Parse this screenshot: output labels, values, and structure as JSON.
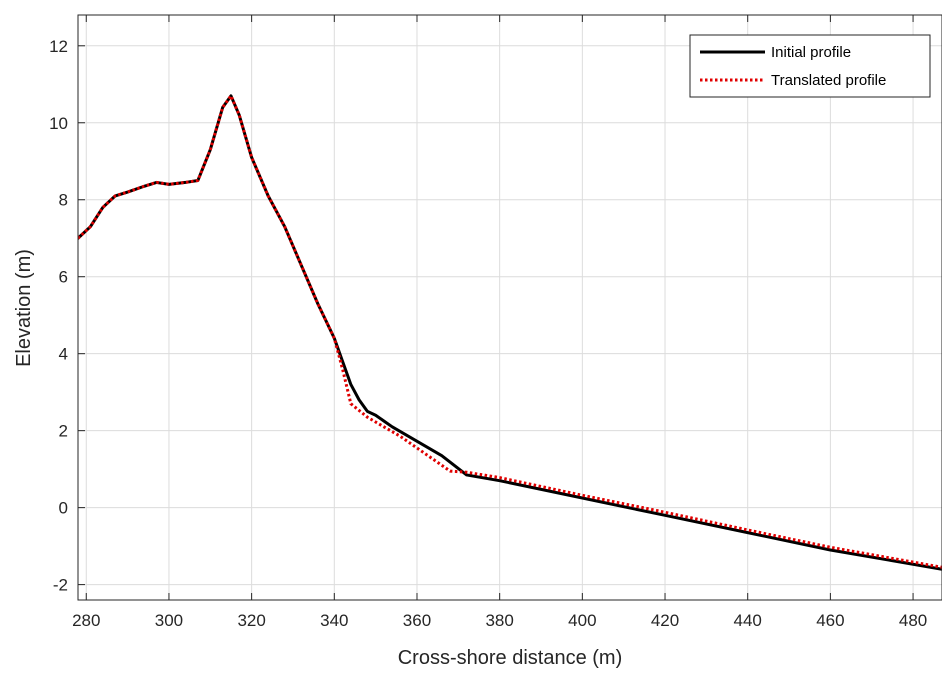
{
  "chart_data": {
    "type": "line",
    "title": "",
    "xlabel": "Cross-shore distance (m)",
    "ylabel": "Elevation (m)",
    "xlim": [
      278,
      487
    ],
    "ylim": [
      -2.4,
      12.8
    ],
    "xticks": [
      280,
      300,
      320,
      340,
      360,
      380,
      400,
      420,
      440,
      460,
      480
    ],
    "yticks": [
      -2,
      0,
      2,
      4,
      6,
      8,
      10,
      12
    ],
    "grid": true,
    "legend_position": "top-right",
    "series": [
      {
        "name": "Initial profile",
        "color": "#000000",
        "style": "solid",
        "x": [
          278,
          281,
          284,
          287,
          290,
          294,
          297,
          300,
          304,
          307,
          310,
          313,
          315,
          317,
          320,
          324,
          328,
          332,
          336,
          340,
          342,
          344,
          346,
          348,
          350,
          354,
          358,
          362,
          366,
          369,
          372,
          380,
          400,
          420,
          440,
          460,
          487
        ],
        "y": [
          7.0,
          7.3,
          7.8,
          8.1,
          8.2,
          8.35,
          8.45,
          8.4,
          8.45,
          8.5,
          9.3,
          10.4,
          10.7,
          10.2,
          9.1,
          8.1,
          7.3,
          6.3,
          5.3,
          4.4,
          3.8,
          3.2,
          2.8,
          2.5,
          2.4,
          2.1,
          1.85,
          1.6,
          1.35,
          1.1,
          0.85,
          0.7,
          0.25,
          -0.2,
          -0.65,
          -1.1,
          -1.6
        ]
      },
      {
        "name": "Translated profile",
        "color": "#e00000",
        "style": "dotted",
        "x": [
          278,
          281,
          284,
          287,
          290,
          294,
          297,
          300,
          304,
          307,
          310,
          313,
          315,
          317,
          320,
          324,
          328,
          332,
          336,
          340,
          342,
          344,
          348,
          352,
          356,
          360,
          364,
          368,
          372,
          380,
          400,
          420,
          440,
          460,
          487
        ],
        "y": [
          7.0,
          7.3,
          7.8,
          8.1,
          8.2,
          8.35,
          8.45,
          8.4,
          8.45,
          8.5,
          9.3,
          10.4,
          10.7,
          10.2,
          9.1,
          8.1,
          7.3,
          6.3,
          5.3,
          4.4,
          3.6,
          2.7,
          2.35,
          2.1,
          1.85,
          1.55,
          1.25,
          0.95,
          0.92,
          0.78,
          0.32,
          -0.12,
          -0.58,
          -1.03,
          -1.55
        ]
      }
    ]
  }
}
